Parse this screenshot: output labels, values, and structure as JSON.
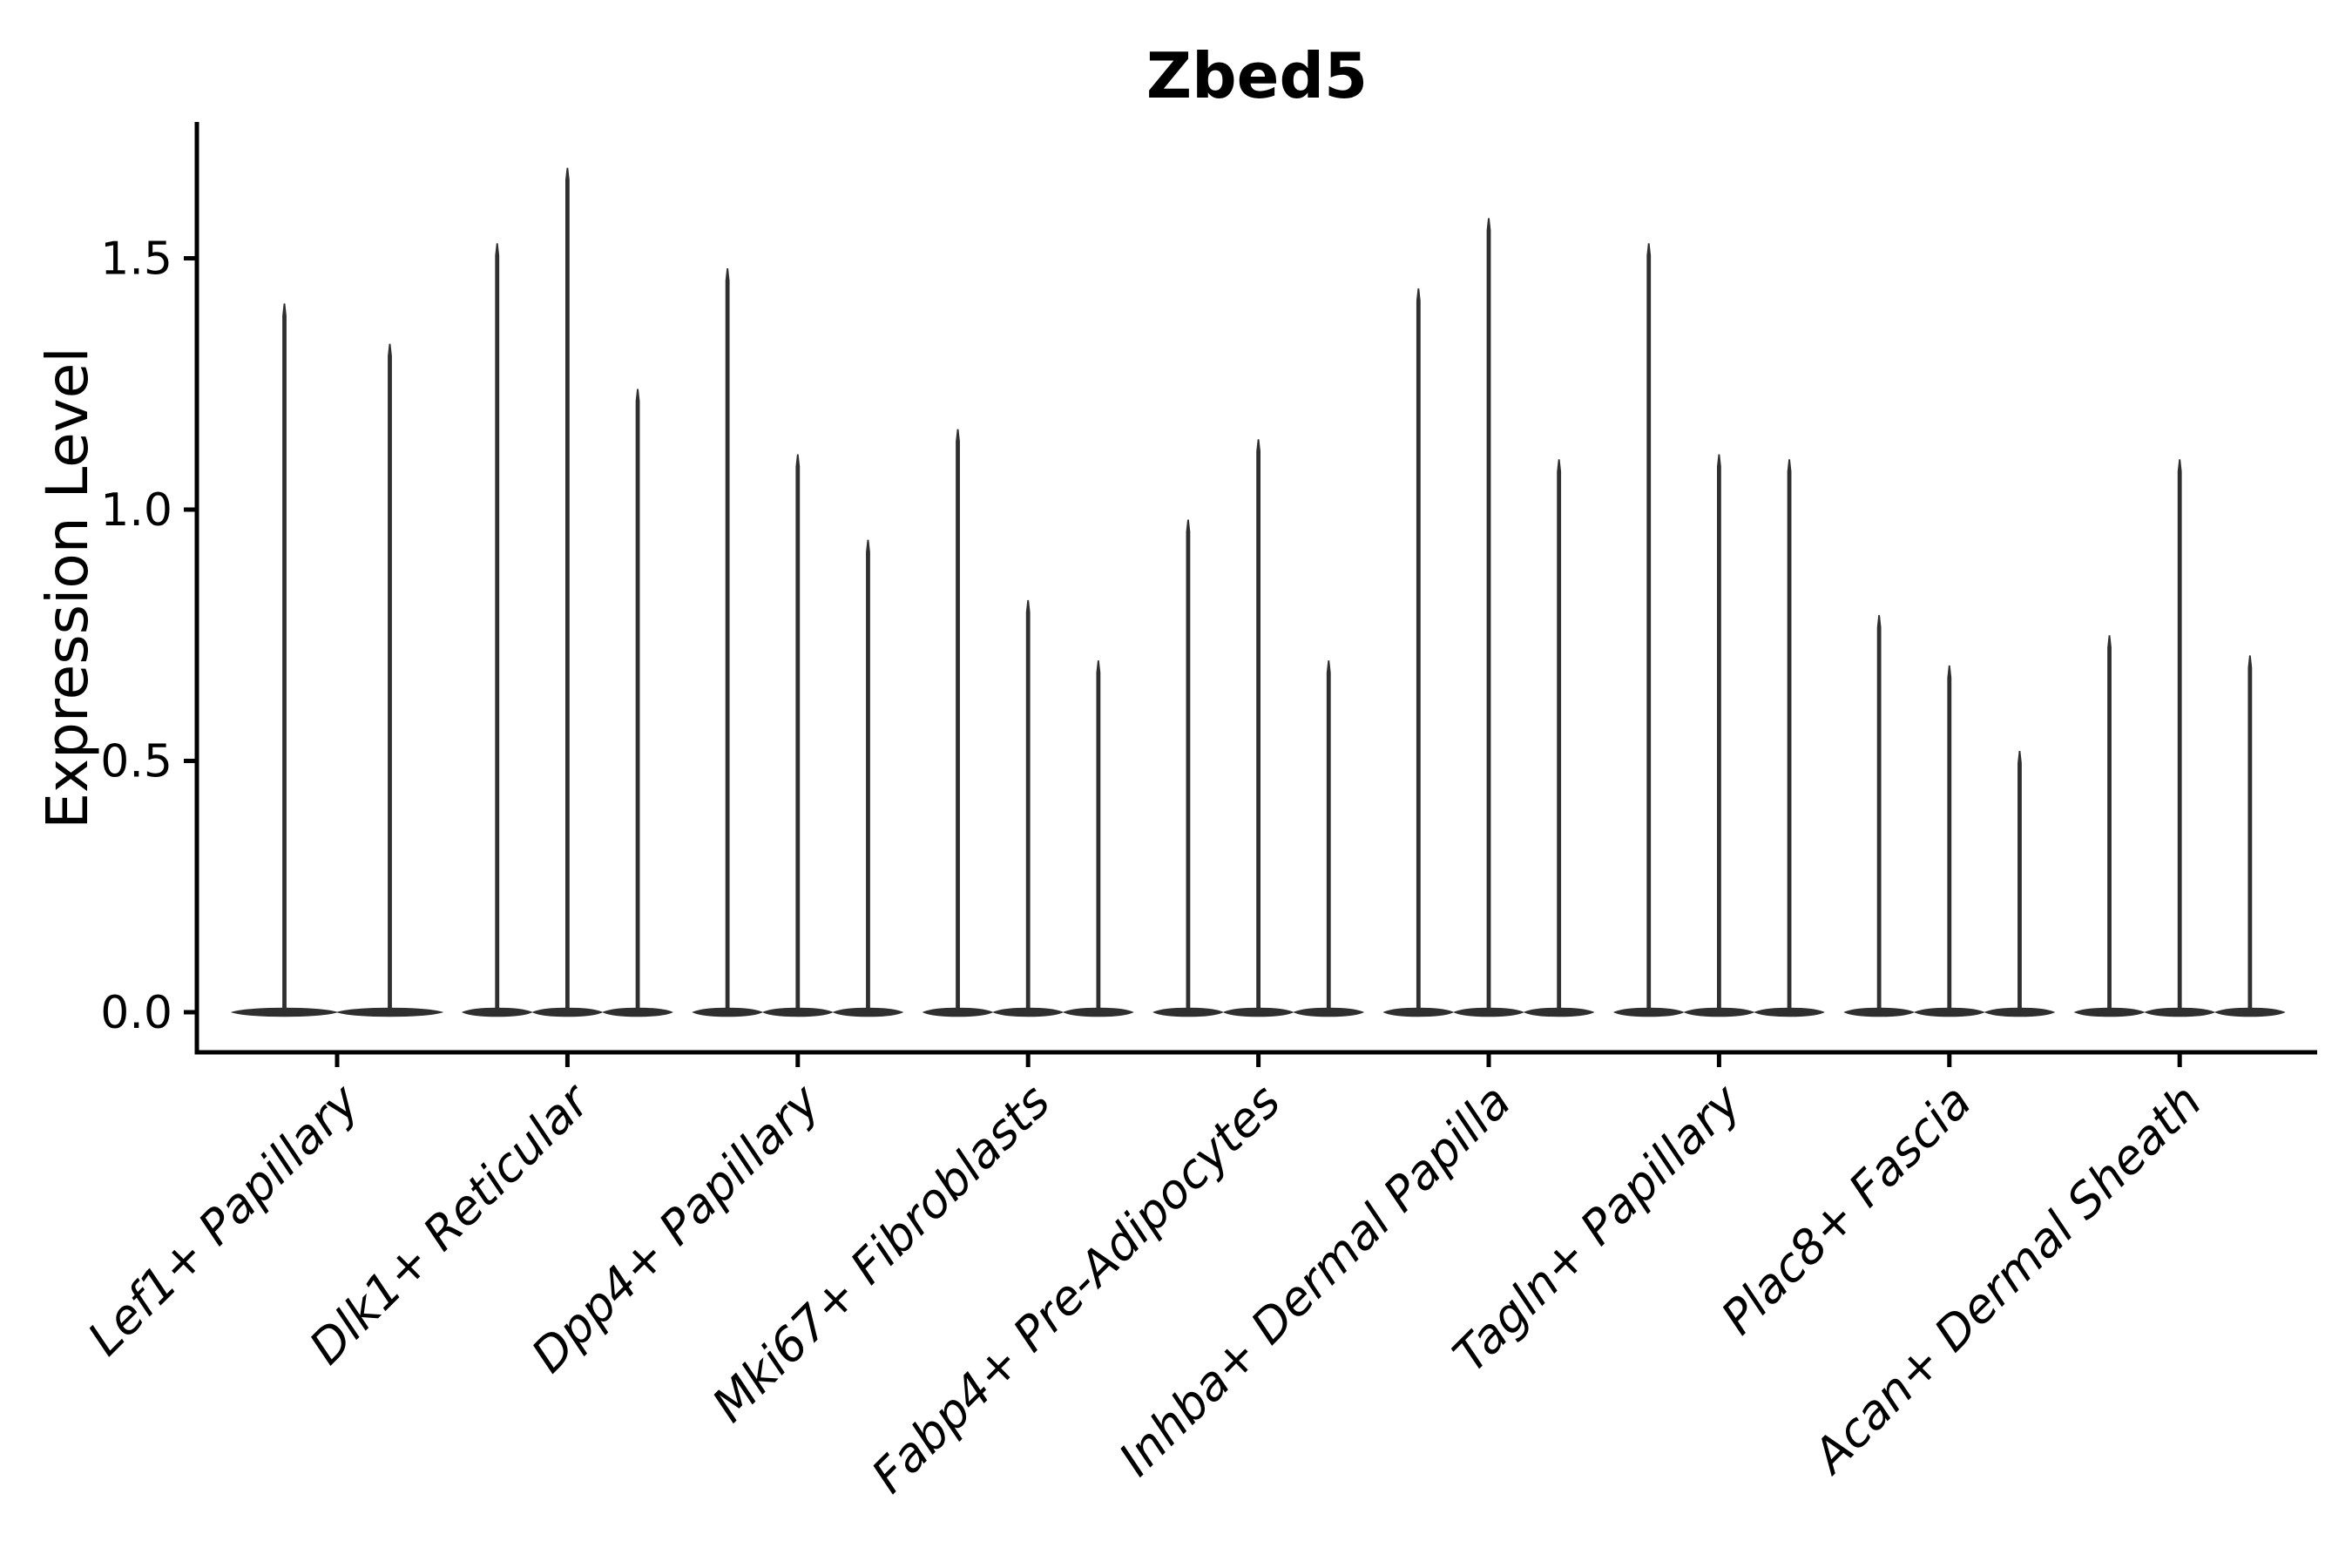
{
  "title": "Zbed5",
  "chart_data": {
    "type": "violin",
    "title": "Zbed5",
    "ylabel": "Expression Level",
    "xlabel": "",
    "ylim": [
      -0.09,
      1.77
    ],
    "yticks": [
      0.0,
      0.5,
      1.0,
      1.5
    ],
    "ytick_labels": [
      "0.0",
      "0.5",
      "1.0",
      "1.5"
    ],
    "grid": false,
    "legend": "none",
    "style_note": "Seurat-style single-gene violin plot; each violin is collapsed to a thin vertical spike rising from a flat lens-shaped body at expression 0; spike top = maximum expression",
    "categories": [
      "Lef1+ Papillary",
      "Dlk1+ Reticular",
      "Dpp4+ Papillary",
      "Mki67+ Fibroblasts",
      "Fabp4+ Pre-Adipocytes",
      "Inhba+ Dermal Papilla",
      "Tagln+ Papillary",
      "Plac8+ Fascia",
      "Acan+ Dermal Sheath"
    ],
    "groups": [
      {
        "label": "Lef1+ Papillary",
        "violins_at_zero": true,
        "spike_maxima": [
          1.41,
          1.33
        ]
      },
      {
        "label": "Dlk1+ Reticular",
        "violins_at_zero": true,
        "spike_maxima": [
          1.53,
          1.68,
          1.24
        ]
      },
      {
        "label": "Dpp4+ Papillary",
        "violins_at_zero": true,
        "spike_maxima": [
          1.48,
          1.11,
          0.94
        ]
      },
      {
        "label": "Mki67+ Fibroblasts",
        "violins_at_zero": true,
        "spike_maxima": [
          1.16,
          0.82,
          0.7
        ]
      },
      {
        "label": "Fabp4+ Pre-Adipocytes",
        "violins_at_zero": true,
        "spike_maxima": [
          0.98,
          1.14,
          0.7
        ]
      },
      {
        "label": "Inhba+ Dermal Papilla",
        "violins_at_zero": true,
        "spike_maxima": [
          1.44,
          1.58,
          1.1
        ]
      },
      {
        "label": "Tagln+ Papillary",
        "violins_at_zero": true,
        "spike_maxima": [
          1.53,
          1.11,
          1.1
        ]
      },
      {
        "label": "Plac8+ Fascia",
        "violins_at_zero": true,
        "spike_maxima": [
          0.79,
          0.69,
          0.52
        ]
      },
      {
        "label": "Acan+ Dermal Sheath",
        "violins_at_zero": true,
        "spike_maxima": [
          0.75,
          1.1,
          0.71
        ]
      }
    ],
    "colors": {
      "violin": "#2f2f2f",
      "axis": "#000000",
      "text": "#000000",
      "background": "#ffffff"
    }
  }
}
